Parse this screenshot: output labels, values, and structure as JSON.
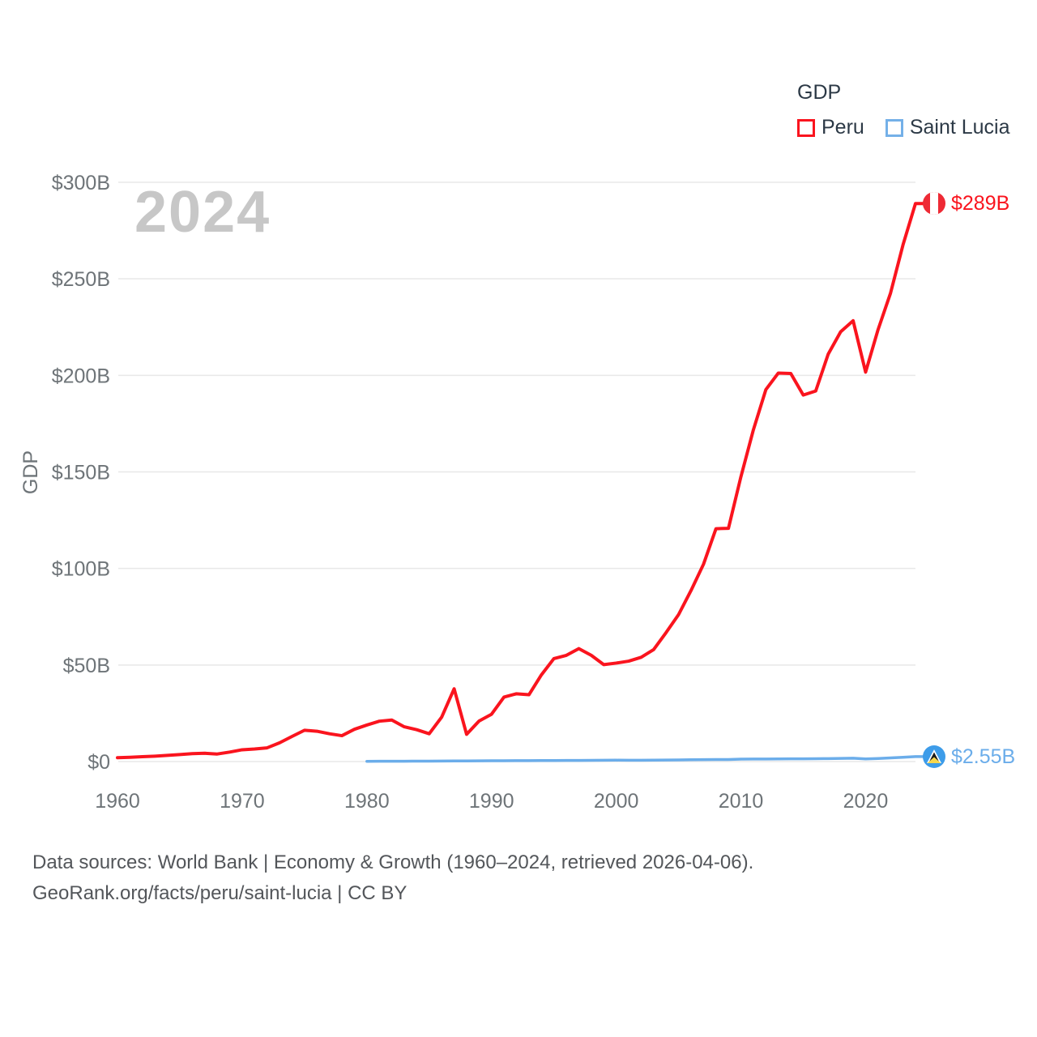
{
  "legend": {
    "title": "GDP",
    "items": [
      {
        "label": "Peru",
        "color": "#fa141e"
      },
      {
        "label": "Saint Lucia",
        "color": "#74b0e8"
      }
    ]
  },
  "watermark": "2024",
  "colors": {
    "peru": "#fa141e",
    "saint_lucia": "#6badea",
    "peru_flag_red": "#ee2a35",
    "flag_white": "#ffffff",
    "saint_lucia_flag_blue": "#3d9ce9",
    "saint_lucia_flag_yellow": "#f7d74c",
    "saint_lucia_flag_black": "#1a1a1a",
    "gridline": "#e8e8e8",
    "axis_text": "#6e7478"
  },
  "chart_data": {
    "type": "line",
    "title": "GDP",
    "xlabel": "",
    "ylabel": "GDP",
    "xlim": [
      1960,
      2024
    ],
    "ylim": [
      0,
      300
    ],
    "grid": "horizontal",
    "legend_position": "top-right",
    "xticks": [
      1960,
      1970,
      1980,
      1990,
      2000,
      2010,
      2020
    ],
    "yticks": [
      {
        "value": 0,
        "label": "$0"
      },
      {
        "value": 50,
        "label": "$50B"
      },
      {
        "value": 100,
        "label": "$100B"
      },
      {
        "value": 150,
        "label": "$150B"
      },
      {
        "value": 200,
        "label": "$200B"
      },
      {
        "value": 250,
        "label": "$250B"
      },
      {
        "value": 300,
        "label": "$300B"
      }
    ],
    "series": [
      {
        "name": "Peru",
        "color": "#fa141e",
        "flag_icon": "peru-flag-icon",
        "start_year": 1960,
        "end_label": "$289B",
        "values": [
          2.0,
          2.2,
          2.5,
          2.8,
          3.2,
          3.6,
          4.1,
          4.3,
          3.9,
          4.9,
          6.1,
          6.5,
          7.1,
          9.7,
          13.0,
          16.2,
          15.7,
          14.4,
          13.4,
          16.7,
          18.9,
          20.9,
          21.5,
          18.0,
          16.5,
          14.4,
          23.0,
          37.7,
          14.1,
          21.0,
          24.5,
          33.4,
          35.1,
          34.6,
          44.9,
          53.3,
          55.0,
          58.5,
          55.0,
          50.2,
          51.0,
          52.0,
          54.0,
          58.0,
          66.8,
          76.1,
          88.6,
          102.2,
          120.6,
          120.8,
          147.5,
          171.8,
          192.6,
          201.2,
          201.0,
          189.8,
          191.9,
          211.0,
          222.6,
          228.3,
          201.7,
          223.7,
          242.6,
          267.6,
          289.0
        ]
      },
      {
        "name": "Saint Lucia",
        "color": "#6badea",
        "flag_icon": "saint-lucia-flag-icon",
        "start_year": 1980,
        "end_label": "$2.55B",
        "values": [
          0.13,
          0.15,
          0.16,
          0.18,
          0.2,
          0.22,
          0.26,
          0.29,
          0.33,
          0.36,
          0.4,
          0.43,
          0.47,
          0.49,
          0.52,
          0.55,
          0.58,
          0.59,
          0.63,
          0.67,
          0.71,
          0.69,
          0.7,
          0.75,
          0.81,
          0.86,
          0.93,
          1.01,
          1.07,
          1.06,
          1.24,
          1.29,
          1.32,
          1.35,
          1.4,
          1.44,
          1.47,
          1.53,
          1.62,
          1.72,
          1.37,
          1.57,
          1.88,
          2.2,
          2.55
        ]
      }
    ]
  },
  "footer": {
    "line1": "Data sources: World Bank | Economy & Growth (1960–2024, retrieved 2026-04-06).",
    "line2": "GeoRank.org/facts/peru/saint-lucia | CC BY"
  }
}
